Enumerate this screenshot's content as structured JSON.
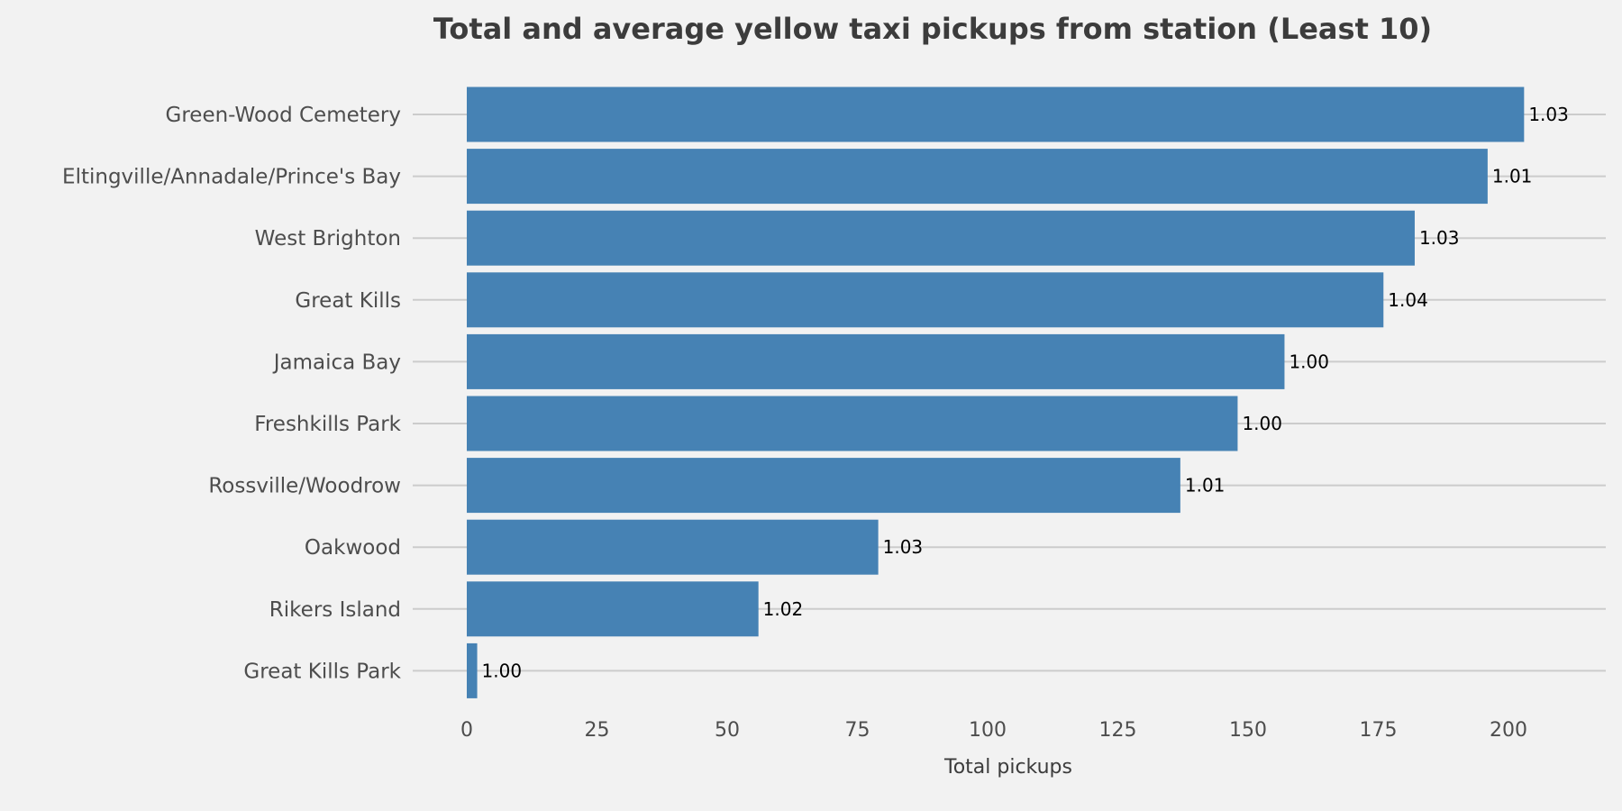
{
  "chart_data": {
    "type": "bar",
    "orientation": "horizontal",
    "title": "Total and average yellow taxi pickups from station (Least 10)",
    "xlabel": "Total pickups",
    "ylabel": "",
    "categories": [
      "Green-Wood Cemetery",
      "Eltingville/Annadale/Prince's Bay",
      "West Brighton",
      "Great Kills",
      "Jamaica Bay",
      "Freshkills Park",
      "Rossville/Woodrow",
      "Oakwood",
      "Rikers Island",
      "Great Kills Park"
    ],
    "values": [
      203,
      196,
      182,
      176,
      157,
      148,
      137,
      79,
      56,
      2
    ],
    "value_labels": [
      "1.03",
      "1.01",
      "1.03",
      "1.04",
      "1.00",
      "1.00",
      "1.01",
      "1.03",
      "1.02",
      "1.00"
    ],
    "xticks": [
      "0",
      "25",
      "50",
      "75",
      "100",
      "125",
      "150",
      "175",
      "200"
    ],
    "xlim": [
      0,
      219
    ],
    "bar_color": "#4682b4",
    "background_color": "#f2f2f2",
    "grid": "horizontal lines at each category"
  }
}
